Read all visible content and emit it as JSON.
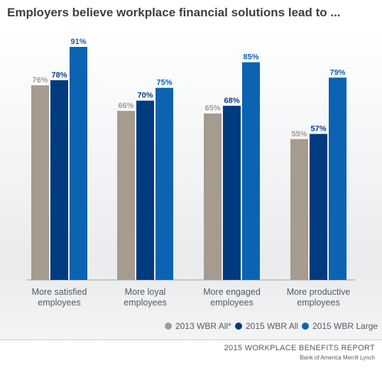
{
  "title": "Employers believe workplace financial solutions lead to ...",
  "chart_data": {
    "type": "bar",
    "categories": [
      [
        "More satisfied",
        "employees"
      ],
      [
        "More loyal",
        "employees"
      ],
      [
        "More engaged",
        "employees"
      ],
      [
        "More productive",
        "employees"
      ]
    ],
    "series": [
      {
        "name": "2013 WBR All*",
        "color": "#a59b8f",
        "labelColor": "#a59b8f",
        "values": [
          76,
          66,
          65,
          55
        ]
      },
      {
        "name": "2015 WBR All",
        "color": "#003b7f",
        "labelColor": "#0a3f85",
        "values": [
          78,
          70,
          68,
          57
        ]
      },
      {
        "name": "2015 WBR Large",
        "color": "#0b63b2",
        "labelColor": "#0b63b2",
        "values": [
          91,
          75,
          85,
          79
        ]
      }
    ],
    "value_suffix": "%",
    "ylim": [
      0,
      100
    ],
    "xlabel": "",
    "ylabel": "",
    "grid": false,
    "legend_position": "bottom"
  },
  "footer": {
    "report": "2015 WORKPLACE BENEFITS REPORT",
    "source": "Bank of America Merrill Lynch"
  }
}
